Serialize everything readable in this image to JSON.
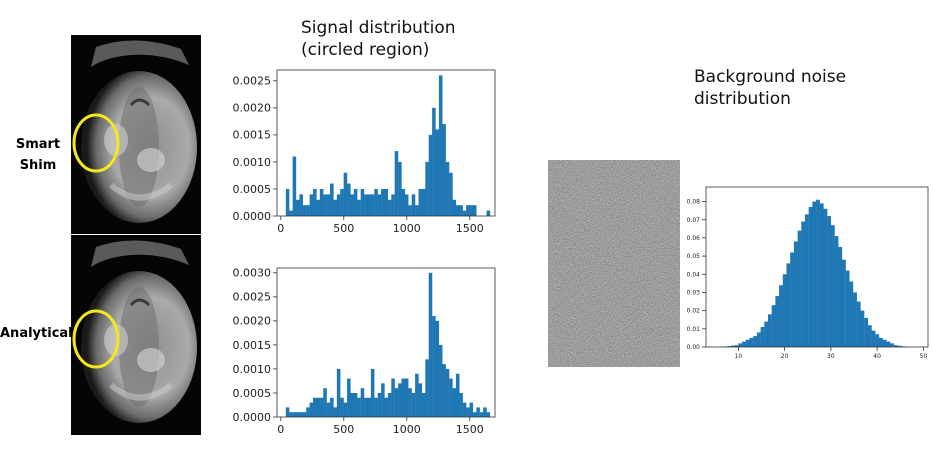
{
  "headings": {
    "signal": "Signal distribution\n(circled region)",
    "noise": "Background noise\ndistribution"
  },
  "row_labels": {
    "smart_shim": "Smart\nShim",
    "analytical": "Analytical"
  },
  "colors": {
    "bar": "#1f77b4",
    "roi_circle": "#f2e81b",
    "axes": "#333333"
  },
  "icons": [
    "brain-mri-scan-smart-shim",
    "brain-mri-scan-analytical",
    "background-noise-patch"
  ],
  "chart_data": [
    {
      "id": "smart-shim-signal",
      "type": "bar",
      "title": "",
      "xlabel": "",
      "ylabel": "",
      "xlim": [
        -30,
        1700
      ],
      "ylim": [
        0,
        0.0027
      ],
      "xticks": [
        0,
        500,
        1000,
        1500
      ],
      "yticks": [
        0.0,
        0.0005,
        0.001,
        0.0015,
        0.002,
        0.0025
      ],
      "ytick_decimals": 4,
      "bin_start": 40,
      "bin_width": 27,
      "values": [
        0.0005,
        0.0001,
        0.0011,
        0.0003,
        0.0004,
        0.0002,
        0.0002,
        0.0004,
        0.0005,
        0.0003,
        0.0005,
        0.0004,
        0.0004,
        0.0006,
        0.0003,
        0.0004,
        0.0005,
        0.0008,
        0.0006,
        0.0004,
        0.0005,
        0.0003,
        0.0005,
        0.0004,
        0.0004,
        0.0004,
        0.0005,
        0.0004,
        0.0005,
        0.0005,
        0.0003,
        0.0004,
        0.0012,
        0.001,
        0.0005,
        0.0004,
        0.0002,
        0.0004,
        0.0002,
        0.0005,
        0.0005,
        0.001,
        0.0015,
        0.002,
        0.0016,
        0.0026,
        0.0017,
        0.001,
        0.0008,
        0.0003,
        0.0002,
        0.0002,
        0.0001,
        0.0002,
        0.0002,
        0.0002,
        0.0,
        0.0,
        0.0,
        0.0001
      ]
    },
    {
      "id": "analytical-signal",
      "type": "bar",
      "title": "",
      "xlabel": "",
      "ylabel": "",
      "xlim": [
        -30,
        1700
      ],
      "ylim": [
        0,
        0.0031
      ],
      "xticks": [
        0,
        500,
        1000,
        1500
      ],
      "yticks": [
        0.0,
        0.0005,
        0.001,
        0.0015,
        0.002,
        0.0025,
        0.003
      ],
      "ytick_decimals": 4,
      "bin_start": 40,
      "bin_width": 27,
      "values": [
        0.0002,
        0.0001,
        0.0001,
        0.0001,
        0.0001,
        0.0001,
        0.0002,
        0.0003,
        0.0004,
        0.0004,
        0.0004,
        0.0006,
        0.0003,
        0.0004,
        0.0002,
        0.001,
        0.0004,
        0.0003,
        0.0008,
        0.0005,
        0.0005,
        0.0004,
        0.0006,
        0.0004,
        0.0004,
        0.001,
        0.0004,
        0.0005,
        0.0007,
        0.0004,
        0.0005,
        0.0008,
        0.0006,
        0.0007,
        0.0008,
        0.0008,
        0.0006,
        0.0005,
        0.0009,
        0.0007,
        0.0005,
        0.0012,
        0.003,
        0.0021,
        0.002,
        0.0015,
        0.0011,
        0.001,
        0.0008,
        0.0006,
        0.0009,
        0.0005,
        0.0003,
        0.0002,
        0.0003,
        0.0001,
        0.0002,
        0.0001,
        0.0002,
        0.0001
      ]
    },
    {
      "id": "background-noise",
      "type": "bar",
      "title": "",
      "xlabel": "",
      "ylabel": "",
      "xlim": [
        3,
        51
      ],
      "ylim": [
        0,
        0.088
      ],
      "xticks": [
        10,
        20,
        30,
        40,
        50
      ],
      "yticks": [
        0.0,
        0.01,
        0.02,
        0.03,
        0.04,
        0.05,
        0.06,
        0.07,
        0.08
      ],
      "ytick_decimals": 2,
      "bin_start": 6,
      "bin_width": 0.8,
      "values": [
        0.0002,
        0.0003,
        0.0005,
        0.0008,
        0.001,
        0.002,
        0.003,
        0.004,
        0.005,
        0.006,
        0.008,
        0.011,
        0.014,
        0.018,
        0.023,
        0.028,
        0.034,
        0.04,
        0.046,
        0.052,
        0.058,
        0.064,
        0.069,
        0.073,
        0.077,
        0.08,
        0.081,
        0.079,
        0.076,
        0.072,
        0.067,
        0.061,
        0.055,
        0.048,
        0.042,
        0.036,
        0.03,
        0.025,
        0.02,
        0.016,
        0.012,
        0.009,
        0.007,
        0.005,
        0.004,
        0.003,
        0.002,
        0.001,
        0.0007,
        0.0004
      ]
    }
  ]
}
